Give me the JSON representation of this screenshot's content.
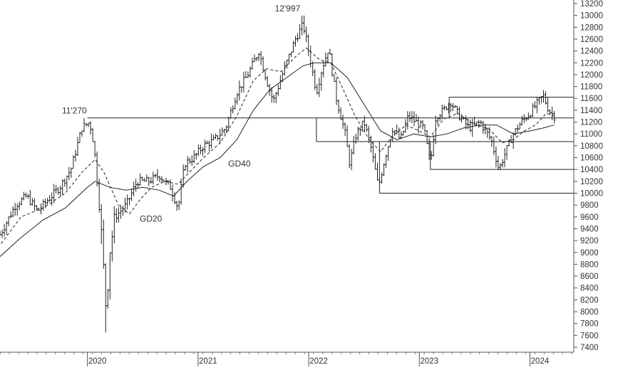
{
  "chart_data": {
    "type": "ohlc",
    "ylim": [
      7400,
      13200
    ],
    "y_ticks": [
      7400,
      7600,
      7800,
      8000,
      8200,
      8400,
      8600,
      8800,
      9000,
      9200,
      9400,
      9600,
      9800,
      10000,
      10200,
      10400,
      10600,
      10800,
      11000,
      11200,
      11400,
      11600,
      11800,
      12000,
      12200,
      12400,
      12600,
      12800,
      13000,
      13200
    ],
    "x_ticks": [
      {
        "label": "2020",
        "t": 2020.0
      },
      {
        "label": "2021",
        "t": 2021.0
      },
      {
        "label": "2022",
        "t": 2022.0
      },
      {
        "label": "2023",
        "t": 2023.0
      },
      {
        "label": "2024",
        "t": 2024.0
      }
    ],
    "xlim": [
      2019.21,
      2024.39
    ],
    "grid": false,
    "annotations": [
      {
        "text": "12'997",
        "t": 2021.95,
        "y": 12997
      },
      {
        "text": "11'270",
        "t": 2020.02,
        "y": 11270
      },
      {
        "text": "GD40",
        "t": 2021.26,
        "y": 10450
      },
      {
        "text": "GD20",
        "t": 2020.46,
        "y": 9520
      }
    ],
    "horizontal_levels": [
      {
        "t_start": 2020.0,
        "t_end": 2024.39,
        "y": 11270
      },
      {
        "t_start": 2022.07,
        "t_end": 2024.39,
        "y": 10870
      },
      {
        "t_start": 2022.64,
        "t_end": 2024.39,
        "y": 10000
      },
      {
        "t_start": 2023.1,
        "t_end": 2024.39,
        "y": 10400
      },
      {
        "t_start": 2023.27,
        "t_end": 2024.39,
        "y": 11620
      }
    ],
    "price_path": [
      {
        "t": 2019.21,
        "v": 9300
      },
      {
        "t": 2019.35,
        "v": 9800
      },
      {
        "t": 2019.45,
        "v": 9950
      },
      {
        "t": 2019.55,
        "v": 9700
      },
      {
        "t": 2019.65,
        "v": 9900
      },
      {
        "t": 2019.75,
        "v": 10100
      },
      {
        "t": 2019.85,
        "v": 10400
      },
      {
        "t": 2019.95,
        "v": 11100
      },
      {
        "t": 2020.02,
        "v": 11200
      },
      {
        "t": 2020.06,
        "v": 10800
      },
      {
        "t": 2020.12,
        "v": 9500
      },
      {
        "t": 2020.17,
        "v": 8000
      },
      {
        "t": 2020.2,
        "v": 9000
      },
      {
        "t": 2020.25,
        "v": 9600
      },
      {
        "t": 2020.35,
        "v": 9800
      },
      {
        "t": 2020.45,
        "v": 10200
      },
      {
        "t": 2020.55,
        "v": 10200
      },
      {
        "t": 2020.65,
        "v": 10300
      },
      {
        "t": 2020.75,
        "v": 10100
      },
      {
        "t": 2020.82,
        "v": 9750
      },
      {
        "t": 2020.88,
        "v": 10500
      },
      {
        "t": 2020.96,
        "v": 10600
      },
      {
        "t": 2021.05,
        "v": 10800
      },
      {
        "t": 2021.15,
        "v": 10900
      },
      {
        "t": 2021.25,
        "v": 11100
      },
      {
        "t": 2021.35,
        "v": 11700
      },
      {
        "t": 2021.45,
        "v": 12000
      },
      {
        "t": 2021.55,
        "v": 12400
      },
      {
        "t": 2021.62,
        "v": 11900
      },
      {
        "t": 2021.68,
        "v": 11550
      },
      {
        "t": 2021.78,
        "v": 12100
      },
      {
        "t": 2021.88,
        "v": 12600
      },
      {
        "t": 2021.95,
        "v": 12850
      },
      {
        "t": 2022.01,
        "v": 12300
      },
      {
        "t": 2022.07,
        "v": 11700
      },
      {
        "t": 2022.12,
        "v": 12100
      },
      {
        "t": 2022.18,
        "v": 12450
      },
      {
        "t": 2022.25,
        "v": 11600
      },
      {
        "t": 2022.33,
        "v": 11000
      },
      {
        "t": 2022.37,
        "v": 10500
      },
      {
        "t": 2022.43,
        "v": 11000
      },
      {
        "t": 2022.5,
        "v": 11200
      },
      {
        "t": 2022.56,
        "v": 10800
      },
      {
        "t": 2022.63,
        "v": 10100
      },
      {
        "t": 2022.69,
        "v": 10600
      },
      {
        "t": 2022.76,
        "v": 11100
      },
      {
        "t": 2022.83,
        "v": 10900
      },
      {
        "t": 2022.9,
        "v": 11300
      },
      {
        "t": 2022.97,
        "v": 11200
      },
      {
        "t": 2023.04,
        "v": 11100
      },
      {
        "t": 2023.1,
        "v": 10500
      },
      {
        "t": 2023.15,
        "v": 11300
      },
      {
        "t": 2023.22,
        "v": 11400
      },
      {
        "t": 2023.28,
        "v": 11550
      },
      {
        "t": 2023.36,
        "v": 11300
      },
      {
        "t": 2023.45,
        "v": 11100
      },
      {
        "t": 2023.55,
        "v": 11200
      },
      {
        "t": 2023.65,
        "v": 10900
      },
      {
        "t": 2023.72,
        "v": 10400
      },
      {
        "t": 2023.78,
        "v": 10700
      },
      {
        "t": 2023.85,
        "v": 11000
      },
      {
        "t": 2023.92,
        "v": 11200
      },
      {
        "t": 2024.0,
        "v": 11350
      },
      {
        "t": 2024.06,
        "v": 11500
      },
      {
        "t": 2024.12,
        "v": 11650
      },
      {
        "t": 2024.17,
        "v": 11400
      },
      {
        "t": 2024.22,
        "v": 11300
      }
    ],
    "bar_count": 258,
    "gd20": [
      {
        "t": 2019.22,
        "v": 9150
      },
      {
        "t": 2019.4,
        "v": 9600
      },
      {
        "t": 2019.6,
        "v": 9750
      },
      {
        "t": 2019.8,
        "v": 10000
      },
      {
        "t": 2019.95,
        "v": 10350
      },
      {
        "t": 2020.07,
        "v": 10570
      },
      {
        "t": 2020.15,
        "v": 10350
      },
      {
        "t": 2020.28,
        "v": 9800
      },
      {
        "t": 2020.38,
        "v": 9650
      },
      {
        "t": 2020.48,
        "v": 9900
      },
      {
        "t": 2020.58,
        "v": 10100
      },
      {
        "t": 2020.7,
        "v": 10200
      },
      {
        "t": 2020.82,
        "v": 10150
      },
      {
        "t": 2020.92,
        "v": 10350
      },
      {
        "t": 2021.05,
        "v": 10600
      },
      {
        "t": 2021.2,
        "v": 10850
      },
      {
        "t": 2021.35,
        "v": 11300
      },
      {
        "t": 2021.5,
        "v": 11900
      },
      {
        "t": 2021.62,
        "v": 12100
      },
      {
        "t": 2021.75,
        "v": 12050
      },
      {
        "t": 2021.88,
        "v": 12300
      },
      {
        "t": 2021.98,
        "v": 12450
      },
      {
        "t": 2022.1,
        "v": 12250
      },
      {
        "t": 2022.2,
        "v": 12200
      },
      {
        "t": 2022.3,
        "v": 11800
      },
      {
        "t": 2022.42,
        "v": 11300
      },
      {
        "t": 2022.55,
        "v": 10900
      },
      {
        "t": 2022.65,
        "v": 10700
      },
      {
        "t": 2022.75,
        "v": 10950
      },
      {
        "t": 2022.88,
        "v": 11150
      },
      {
        "t": 2023.0,
        "v": 11050
      },
      {
        "t": 2023.1,
        "v": 10950
      },
      {
        "t": 2023.22,
        "v": 11250
      },
      {
        "t": 2023.35,
        "v": 11350
      },
      {
        "t": 2023.5,
        "v": 11150
      },
      {
        "t": 2023.62,
        "v": 11100
      },
      {
        "t": 2023.75,
        "v": 10850
      },
      {
        "t": 2023.85,
        "v": 10900
      },
      {
        "t": 2023.95,
        "v": 11050
      },
      {
        "t": 2024.05,
        "v": 11150
      },
      {
        "t": 2024.15,
        "v": 11350
      },
      {
        "t": 2024.22,
        "v": 11300
      }
    ],
    "gd40": [
      {
        "t": 2019.21,
        "v": 8930
      },
      {
        "t": 2019.4,
        "v": 9250
      },
      {
        "t": 2019.6,
        "v": 9550
      },
      {
        "t": 2019.8,
        "v": 9750
      },
      {
        "t": 2020.0,
        "v": 10100
      },
      {
        "t": 2020.07,
        "v": 10200
      },
      {
        "t": 2020.2,
        "v": 10100
      },
      {
        "t": 2020.35,
        "v": 10050
      },
      {
        "t": 2020.5,
        "v": 10100
      },
      {
        "t": 2020.65,
        "v": 10050
      },
      {
        "t": 2020.78,
        "v": 9950
      },
      {
        "t": 2020.9,
        "v": 10200
      },
      {
        "t": 2021.05,
        "v": 10450
      },
      {
        "t": 2021.2,
        "v": 10600
      },
      {
        "t": 2021.35,
        "v": 10900
      },
      {
        "t": 2021.5,
        "v": 11400
      },
      {
        "t": 2021.65,
        "v": 11750
      },
      {
        "t": 2021.8,
        "v": 11950
      },
      {
        "t": 2021.95,
        "v": 12150
      },
      {
        "t": 2022.05,
        "v": 12200
      },
      {
        "t": 2022.2,
        "v": 12200
      },
      {
        "t": 2022.35,
        "v": 11950
      },
      {
        "t": 2022.5,
        "v": 11500
      },
      {
        "t": 2022.65,
        "v": 11050
      },
      {
        "t": 2022.8,
        "v": 10900
      },
      {
        "t": 2022.95,
        "v": 11000
      },
      {
        "t": 2023.1,
        "v": 10950
      },
      {
        "t": 2023.25,
        "v": 11000
      },
      {
        "t": 2023.4,
        "v": 11100
      },
      {
        "t": 2023.55,
        "v": 11150
      },
      {
        "t": 2023.7,
        "v": 11150
      },
      {
        "t": 2023.85,
        "v": 11000
      },
      {
        "t": 2024.0,
        "v": 11050
      },
      {
        "t": 2024.12,
        "v": 11100
      },
      {
        "t": 2024.22,
        "v": 11150
      }
    ]
  }
}
